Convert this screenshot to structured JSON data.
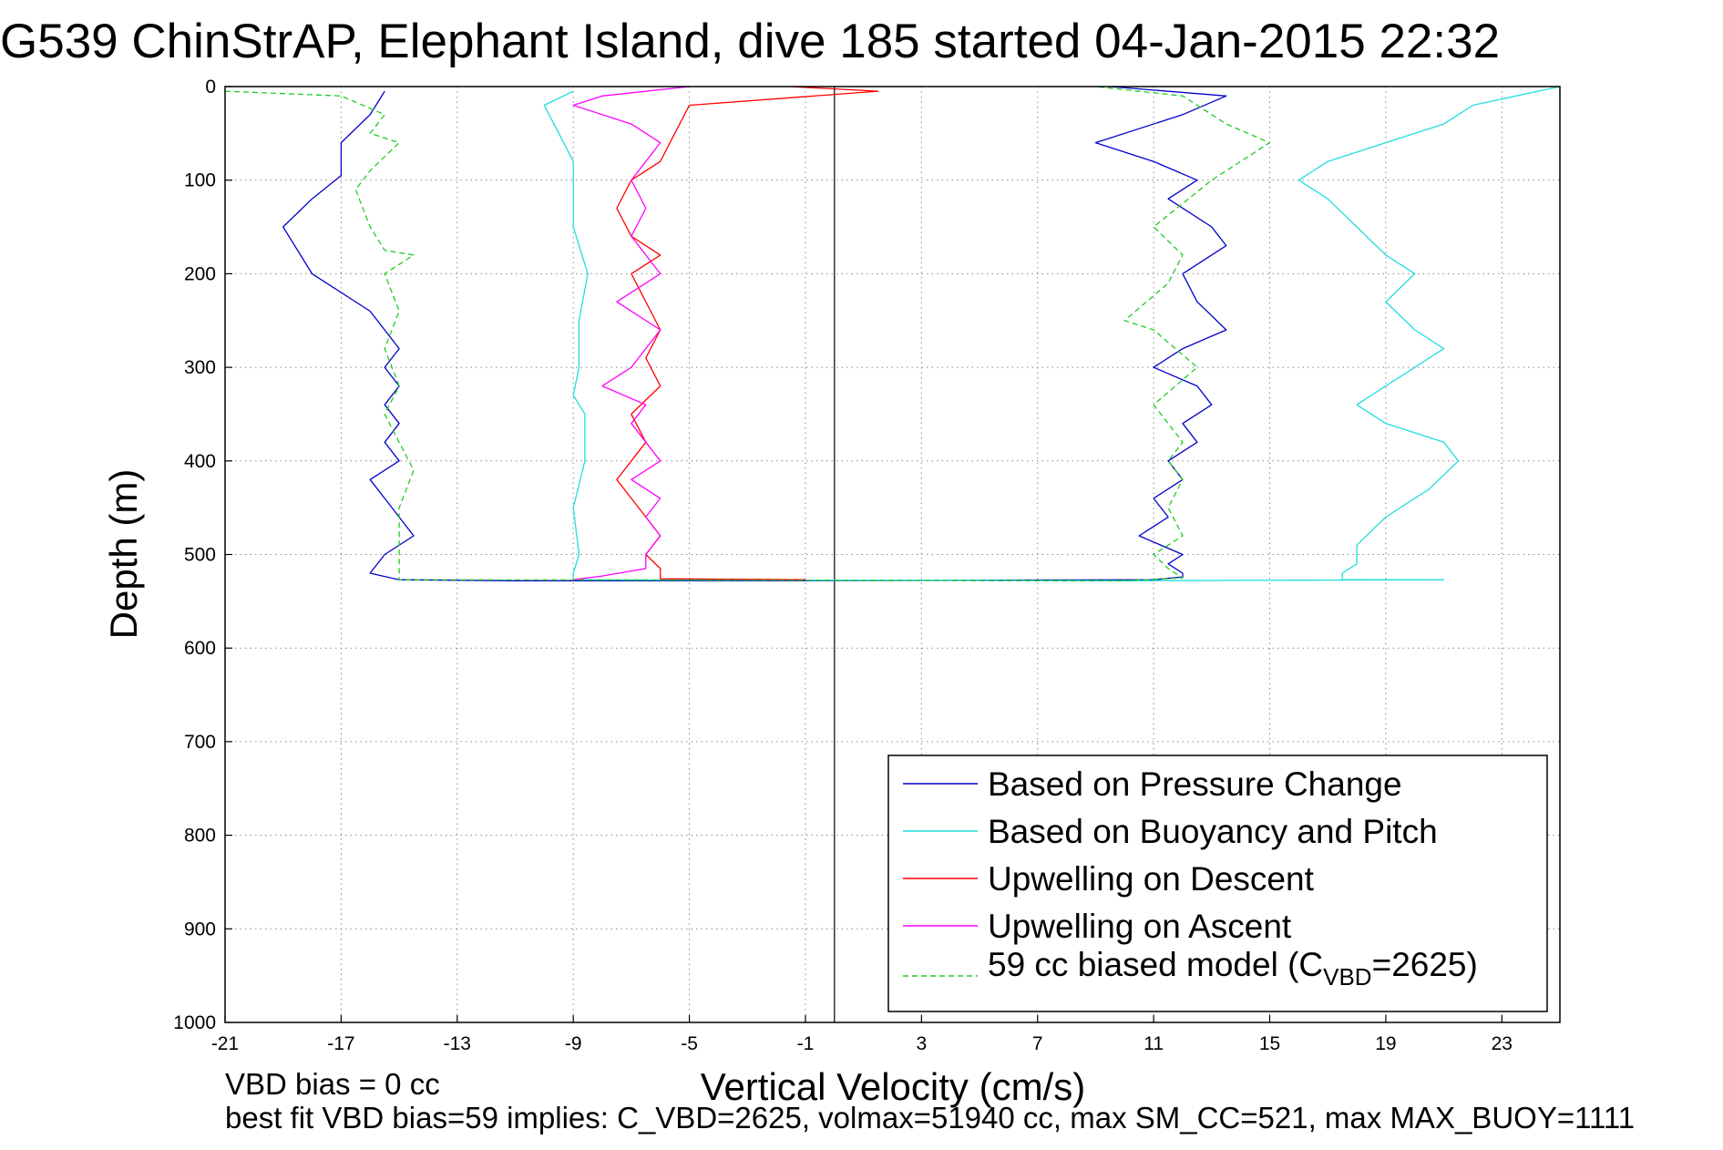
{
  "chart_data": {
    "type": "line",
    "title": "G539 ChinStrAP, Elephant Island, dive 185 started 04-Jan-2015 22:32",
    "xlabel": "Vertical Velocity (cm/s)",
    "ylabel": "Depth (m)",
    "xlim": [
      -21,
      25
    ],
    "ylim": [
      1000,
      0
    ],
    "y_reversed": true,
    "grid": true,
    "legend_placement": "bottom-right",
    "xticks": [
      "-21",
      "-17",
      "-13",
      "-9",
      "-5",
      "-1",
      "3",
      "7",
      "11",
      "15",
      "19",
      "23"
    ],
    "yticks": [
      "0",
      "100",
      "200",
      "300",
      "400",
      "500",
      "600",
      "700",
      "800",
      "900",
      "1000"
    ],
    "vline_x": 0,
    "series": [
      {
        "name": "Based on Pressure Change",
        "color": "#0000cc",
        "style": "solid",
        "x": [
          9.5,
          13.5,
          12,
          9,
          11,
          12.5,
          11.5,
          13,
          13.5,
          12,
          12.5,
          13.5,
          12,
          11,
          12.5,
          13,
          12,
          12.5,
          11.5,
          12,
          11,
          11.5,
          10.5,
          12,
          11.5,
          12,
          12,
          11,
          -1,
          -11,
          -15,
          -16,
          -15.5,
          -14.5,
          -15,
          -15.5,
          -16,
          -15,
          -15.5,
          -15,
          -15.5,
          -15,
          -15.5,
          -15,
          -16,
          -18,
          -19,
          -18,
          -17,
          -17,
          -16,
          -15.5
        ],
        "y": [
          0,
          10,
          30,
          60,
          80,
          100,
          120,
          150,
          170,
          200,
          230,
          260,
          280,
          300,
          320,
          340,
          360,
          380,
          400,
          420,
          440,
          460,
          480,
          500,
          510,
          520,
          524,
          527,
          528,
          528,
          527,
          520,
          500,
          480,
          460,
          440,
          420,
          400,
          380,
          360,
          340,
          320,
          300,
          280,
          240,
          200,
          150,
          120,
          95,
          60,
          30,
          5
        ]
      },
      {
        "name": "Based on Buoyancy and Pitch",
        "color": "#22dddd",
        "style": "solid",
        "x": [
          25,
          22,
          21,
          19,
          17,
          16,
          17,
          18,
          19,
          20,
          19,
          20,
          21,
          20,
          19,
          18,
          19,
          21,
          21.5,
          20.5,
          19,
          18,
          18,
          17.5,
          17.5,
          17.5,
          18.5,
          21,
          10,
          -9,
          -9,
          -8.8,
          -9,
          -8.6,
          -8.6,
          -9,
          -8.8,
          -8.8,
          -8.5,
          -9,
          -9,
          -9,
          -9.5,
          -10,
          -9
        ],
        "y": [
          0,
          20,
          40,
          60,
          80,
          100,
          120,
          150,
          180,
          200,
          230,
          260,
          280,
          300,
          320,
          340,
          360,
          380,
          400,
          430,
          460,
          490,
          510,
          520,
          525,
          527,
          527,
          527,
          528,
          527,
          520,
          500,
          450,
          400,
          350,
          330,
          300,
          250,
          200,
          150,
          100,
          80,
          50,
          20,
          5
        ]
      },
      {
        "name": "Upwelling on Descent",
        "color": "#ff0000",
        "style": "solid",
        "x": [
          -1.5,
          1.5,
          -5,
          -5.5,
          -6,
          -7,
          -7.5,
          -7,
          -6,
          -7,
          -6.5,
          -6,
          -6.5,
          -6,
          -7,
          -6.5,
          -7,
          -7.5,
          -7,
          -6.5,
          -6,
          -6.5,
          -6,
          -6,
          -6,
          -1
        ],
        "y": [
          0,
          5,
          20,
          50,
          80,
          100,
          130,
          160,
          180,
          200,
          230,
          260,
          290,
          320,
          350,
          380,
          400,
          420,
          440,
          460,
          480,
          500,
          515,
          522,
          526,
          527
        ]
      },
      {
        "name": "Upwelling on Ascent",
        "color": "#ff00ff",
        "style": "solid",
        "x": [
          -5,
          -8,
          -9,
          -7,
          -6,
          -7,
          -6.5,
          -7,
          -6,
          -7.5,
          -6,
          -7,
          -8,
          -6.5,
          -7,
          -6.5,
          -6,
          -7,
          -6,
          -6.5,
          -6,
          -6.5,
          -6.5,
          -8,
          -9
        ],
        "y": [
          0,
          10,
          20,
          40,
          60,
          100,
          130,
          160,
          200,
          230,
          260,
          300,
          320,
          340,
          360,
          380,
          400,
          420,
          440,
          460,
          480,
          500,
          515,
          523,
          527
        ]
      },
      {
        "name": "59 cc biased model (C",
        "name_sub": "VBD",
        "name_tail": "=2625)",
        "color": "#22cc22",
        "style": "dashed",
        "x": [
          -21,
          -17,
          -15.5,
          -16,
          -15,
          -16,
          -16.5,
          -16,
          -15.5,
          -14.5,
          -15.5,
          -15,
          -15.5,
          -15,
          -15.5,
          -15,
          -14.5,
          -15,
          -15,
          -15,
          10,
          12,
          11.5,
          11,
          12,
          11.5,
          12,
          11.5,
          12,
          11.5,
          11,
          12.5,
          11,
          10,
          11.5,
          12,
          11,
          13,
          15,
          13.5,
          12,
          9
        ],
        "y": [
          5,
          10,
          30,
          50,
          60,
          90,
          110,
          150,
          175,
          180,
          200,
          240,
          280,
          320,
          350,
          380,
          410,
          450,
          500,
          527,
          528,
          525,
          515,
          500,
          480,
          450,
          420,
          400,
          380,
          360,
          340,
          300,
          260,
          250,
          210,
          180,
          150,
          100,
          60,
          40,
          10,
          0
        ]
      }
    ]
  },
  "footnote": {
    "line1": "VBD bias = 0 cc",
    "line2": "best fit VBD bias=59 implies: C_VBD=2625, volmax=51940 cc, max SM_CC=521, max MAX_BUOY=1111"
  }
}
